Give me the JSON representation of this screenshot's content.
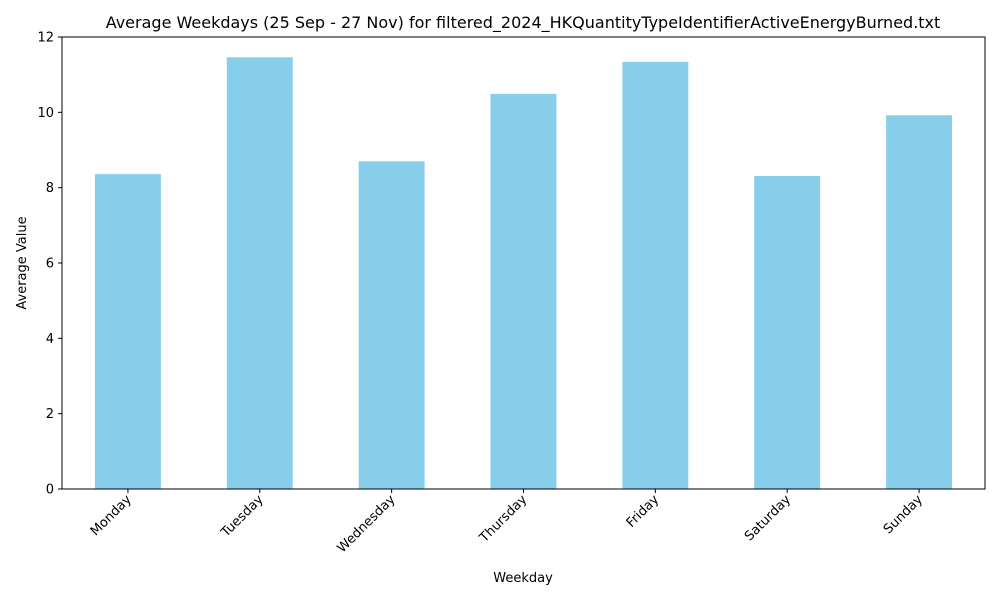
{
  "chart_data": {
    "type": "bar",
    "title": "Average Weekdays (25 Sep - 27 Nov) for filtered_2024_HKQuantityTypeIdentifierActiveEnergyBurned.txt",
    "xlabel": "Weekday",
    "ylabel": "Average Value",
    "categories": [
      "Monday",
      "Tuesday",
      "Wednesday",
      "Thursday",
      "Friday",
      "Saturday",
      "Sunday"
    ],
    "values": [
      8.36,
      11.46,
      8.7,
      10.49,
      11.34,
      8.31,
      9.92
    ],
    "ylim": [
      0,
      12
    ],
    "yticks": [
      0,
      2,
      4,
      6,
      8,
      10,
      12
    ],
    "bar_color": "#87CEEB",
    "grid": false,
    "legend": "none"
  }
}
